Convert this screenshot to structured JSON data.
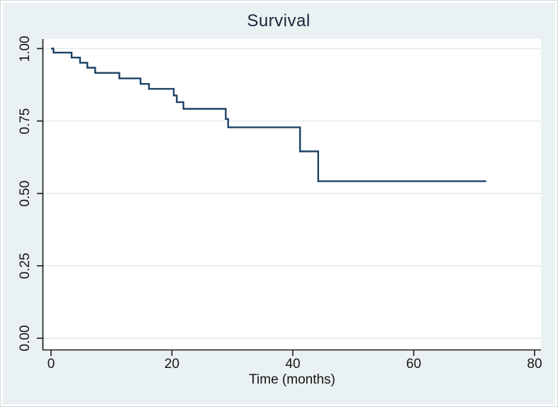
{
  "colors": {
    "canvas_bg": "#eaf1f2",
    "plot_bg": "#ffffff",
    "gridline": "#e2ebee",
    "axis": "#1a1a1a",
    "line": "#1d4266",
    "text": "#161616",
    "title": "#15273d"
  },
  "chart_data": {
    "type": "line",
    "subtype": "kaplan-meier-step",
    "title": "Survival",
    "xlabel": "Time (months)",
    "ylabel": "",
    "legend": "none",
    "grid": "horizontal",
    "xlim": [
      0,
      81
    ],
    "ylim": [
      0.0,
      1.0
    ],
    "x_ticks": [
      0,
      20,
      40,
      60,
      80
    ],
    "x_tick_labels": [
      "0",
      "20",
      "40",
      "60",
      "80"
    ],
    "y_ticks": [
      0.0,
      0.25,
      0.5,
      0.75,
      1.0
    ],
    "y_tick_labels": [
      "0.00",
      "0.25",
      "0.50",
      "0.75",
      "1.00"
    ],
    "series": [
      {
        "name": "Survival",
        "color": "#1d4266",
        "end_time": 72,
        "points": [
          [
            0.0,
            1.0
          ],
          [
            0.4,
            0.986
          ],
          [
            3.4,
            0.969
          ],
          [
            4.8,
            0.951
          ],
          [
            6.0,
            0.934
          ],
          [
            7.3,
            0.916
          ],
          [
            11.3,
            0.897
          ],
          [
            14.8,
            0.878
          ],
          [
            16.2,
            0.861
          ],
          [
            20.3,
            0.838
          ],
          [
            20.8,
            0.815
          ],
          [
            21.9,
            0.792
          ],
          [
            28.9,
            0.757
          ],
          [
            29.3,
            0.728
          ],
          [
            41.2,
            0.645
          ],
          [
            44.2,
            0.542
          ]
        ]
      }
    ]
  }
}
